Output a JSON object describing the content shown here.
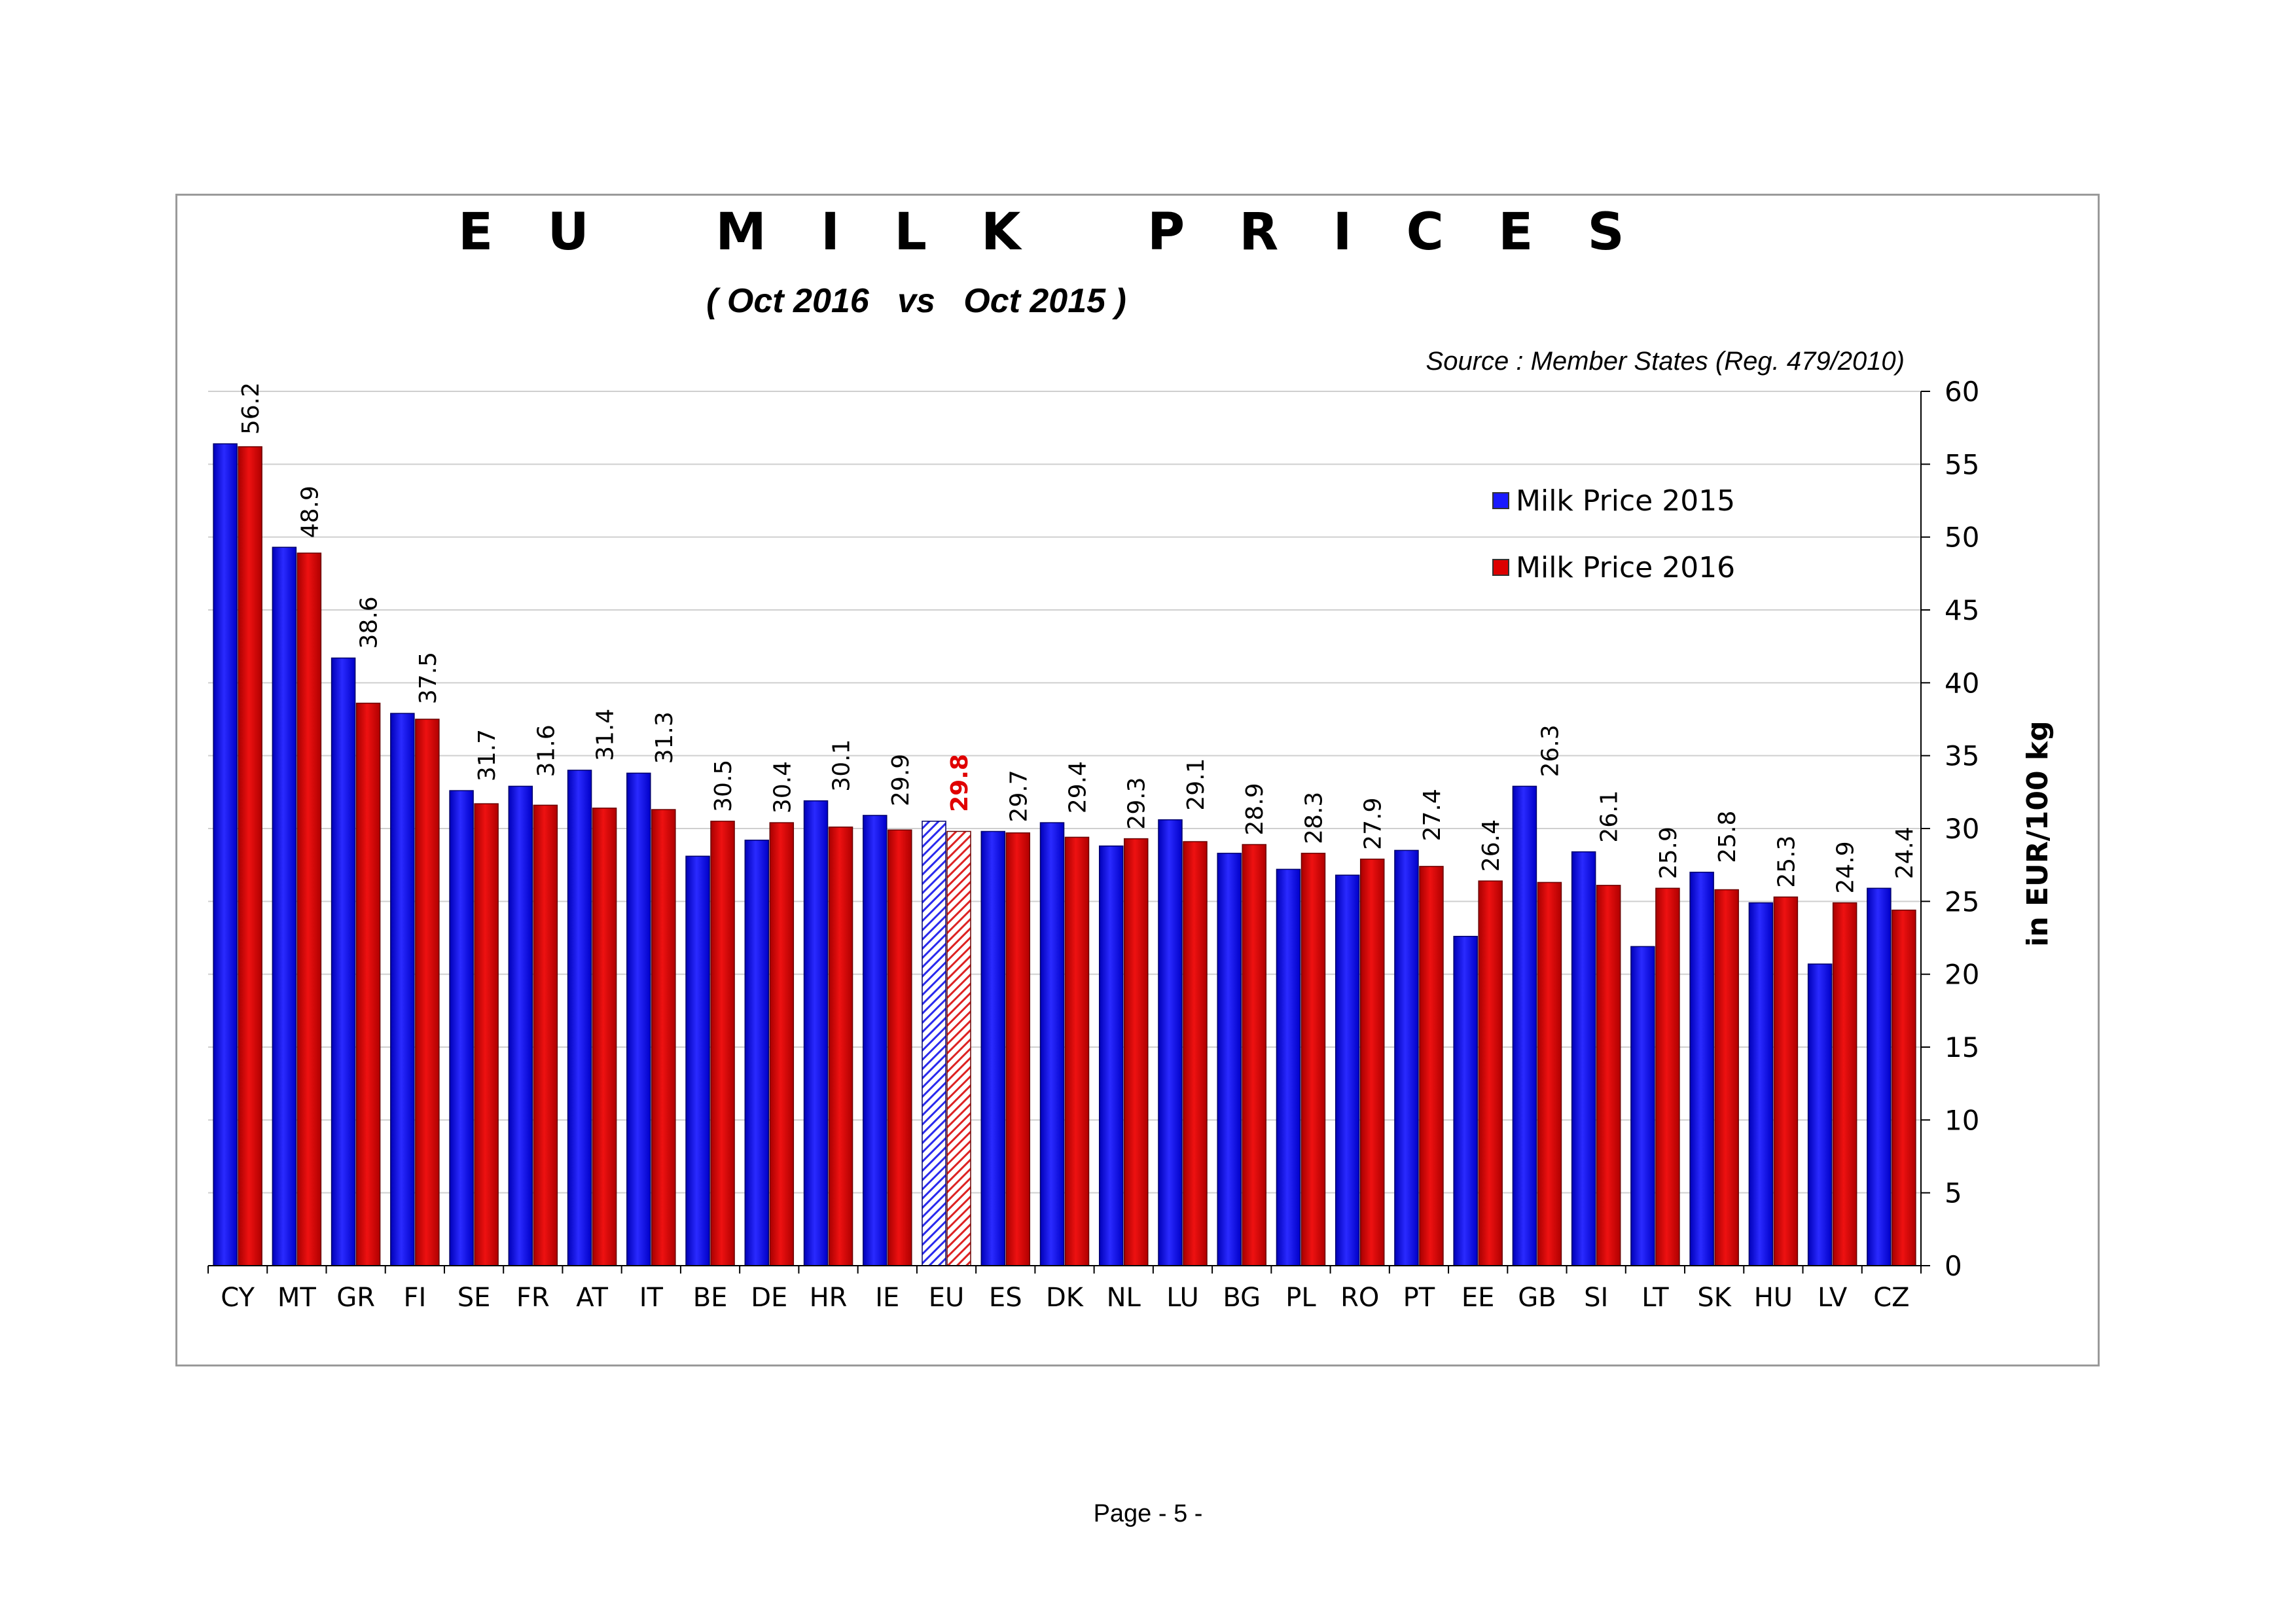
{
  "chart_title": "E U   M I L K   P R I C E S",
  "chart_subtitle": "( Oct 2016   vs   Oct 2015 )",
  "source_note": "Source : Member States (Reg. 479/2010)",
  "page_footer": "Page - 5 -",
  "legend": {
    "items": [
      {
        "label": "Milk Price 2015",
        "color": "#1a1aff"
      },
      {
        "label": "Milk Price 2016",
        "color": "#dd0000"
      }
    ]
  },
  "chart_data": {
    "type": "bar",
    "title": "E U   M I L K   P R I C E S",
    "subtitle": "( Oct 2016   vs   Oct 2015 )",
    "ylabel": "in EUR/100 kg",
    "ylim": [
      0,
      60
    ],
    "yticks": [
      0,
      5,
      10,
      15,
      20,
      25,
      30,
      35,
      40,
      45,
      50,
      55,
      60
    ],
    "y_axis_side": "right",
    "grid": true,
    "legend_position": "top-right",
    "categories": [
      "CY",
      "MT",
      "GR",
      "FI",
      "SE",
      "FR",
      "AT",
      "IT",
      "BE",
      "DE",
      "HR",
      "IE",
      "EU",
      "ES",
      "DK",
      "NL",
      "LU",
      "BG",
      "PL",
      "RO",
      "PT",
      "EE",
      "GB",
      "SI",
      "LT",
      "SK",
      "HU",
      "LV",
      "CZ"
    ],
    "highlight_category": "EU",
    "series": [
      {
        "name": "Milk Price 2015",
        "color": "#1a1aff",
        "values": [
          56.4,
          49.3,
          41.7,
          37.9,
          32.6,
          32.9,
          34.0,
          33.8,
          28.1,
          29.2,
          31.9,
          30.9,
          30.5,
          29.8,
          30.4,
          28.8,
          30.6,
          28.3,
          27.2,
          26.8,
          28.5,
          22.6,
          32.9,
          28.4,
          21.9,
          27.0,
          24.9,
          20.7,
          25.9
        ]
      },
      {
        "name": "Milk Price 2016",
        "color": "#dd0000",
        "values": [
          56.2,
          48.9,
          38.6,
          37.5,
          31.7,
          31.6,
          31.4,
          31.3,
          30.5,
          30.4,
          30.1,
          29.9,
          29.8,
          29.7,
          29.4,
          29.3,
          29.1,
          28.9,
          28.3,
          27.9,
          27.4,
          26.4,
          26.3,
          26.1,
          25.9,
          25.8,
          25.3,
          24.9,
          24.4
        ]
      }
    ],
    "data_labels": [
      "56.2",
      "48.9",
      "38.6",
      "37.5",
      "31.7",
      "31.6",
      "31.4",
      "31.3",
      "30.5",
      "30.4",
      "30.1",
      "29.9",
      "29.8",
      "29.7",
      "29.4",
      "29.3",
      "29.1",
      "28.9",
      "28.3",
      "27.9",
      "27.4",
      "26.4",
      "26.3",
      "26.1",
      "25.9",
      "25.8",
      "25.3",
      "24.9",
      "24.4"
    ]
  }
}
